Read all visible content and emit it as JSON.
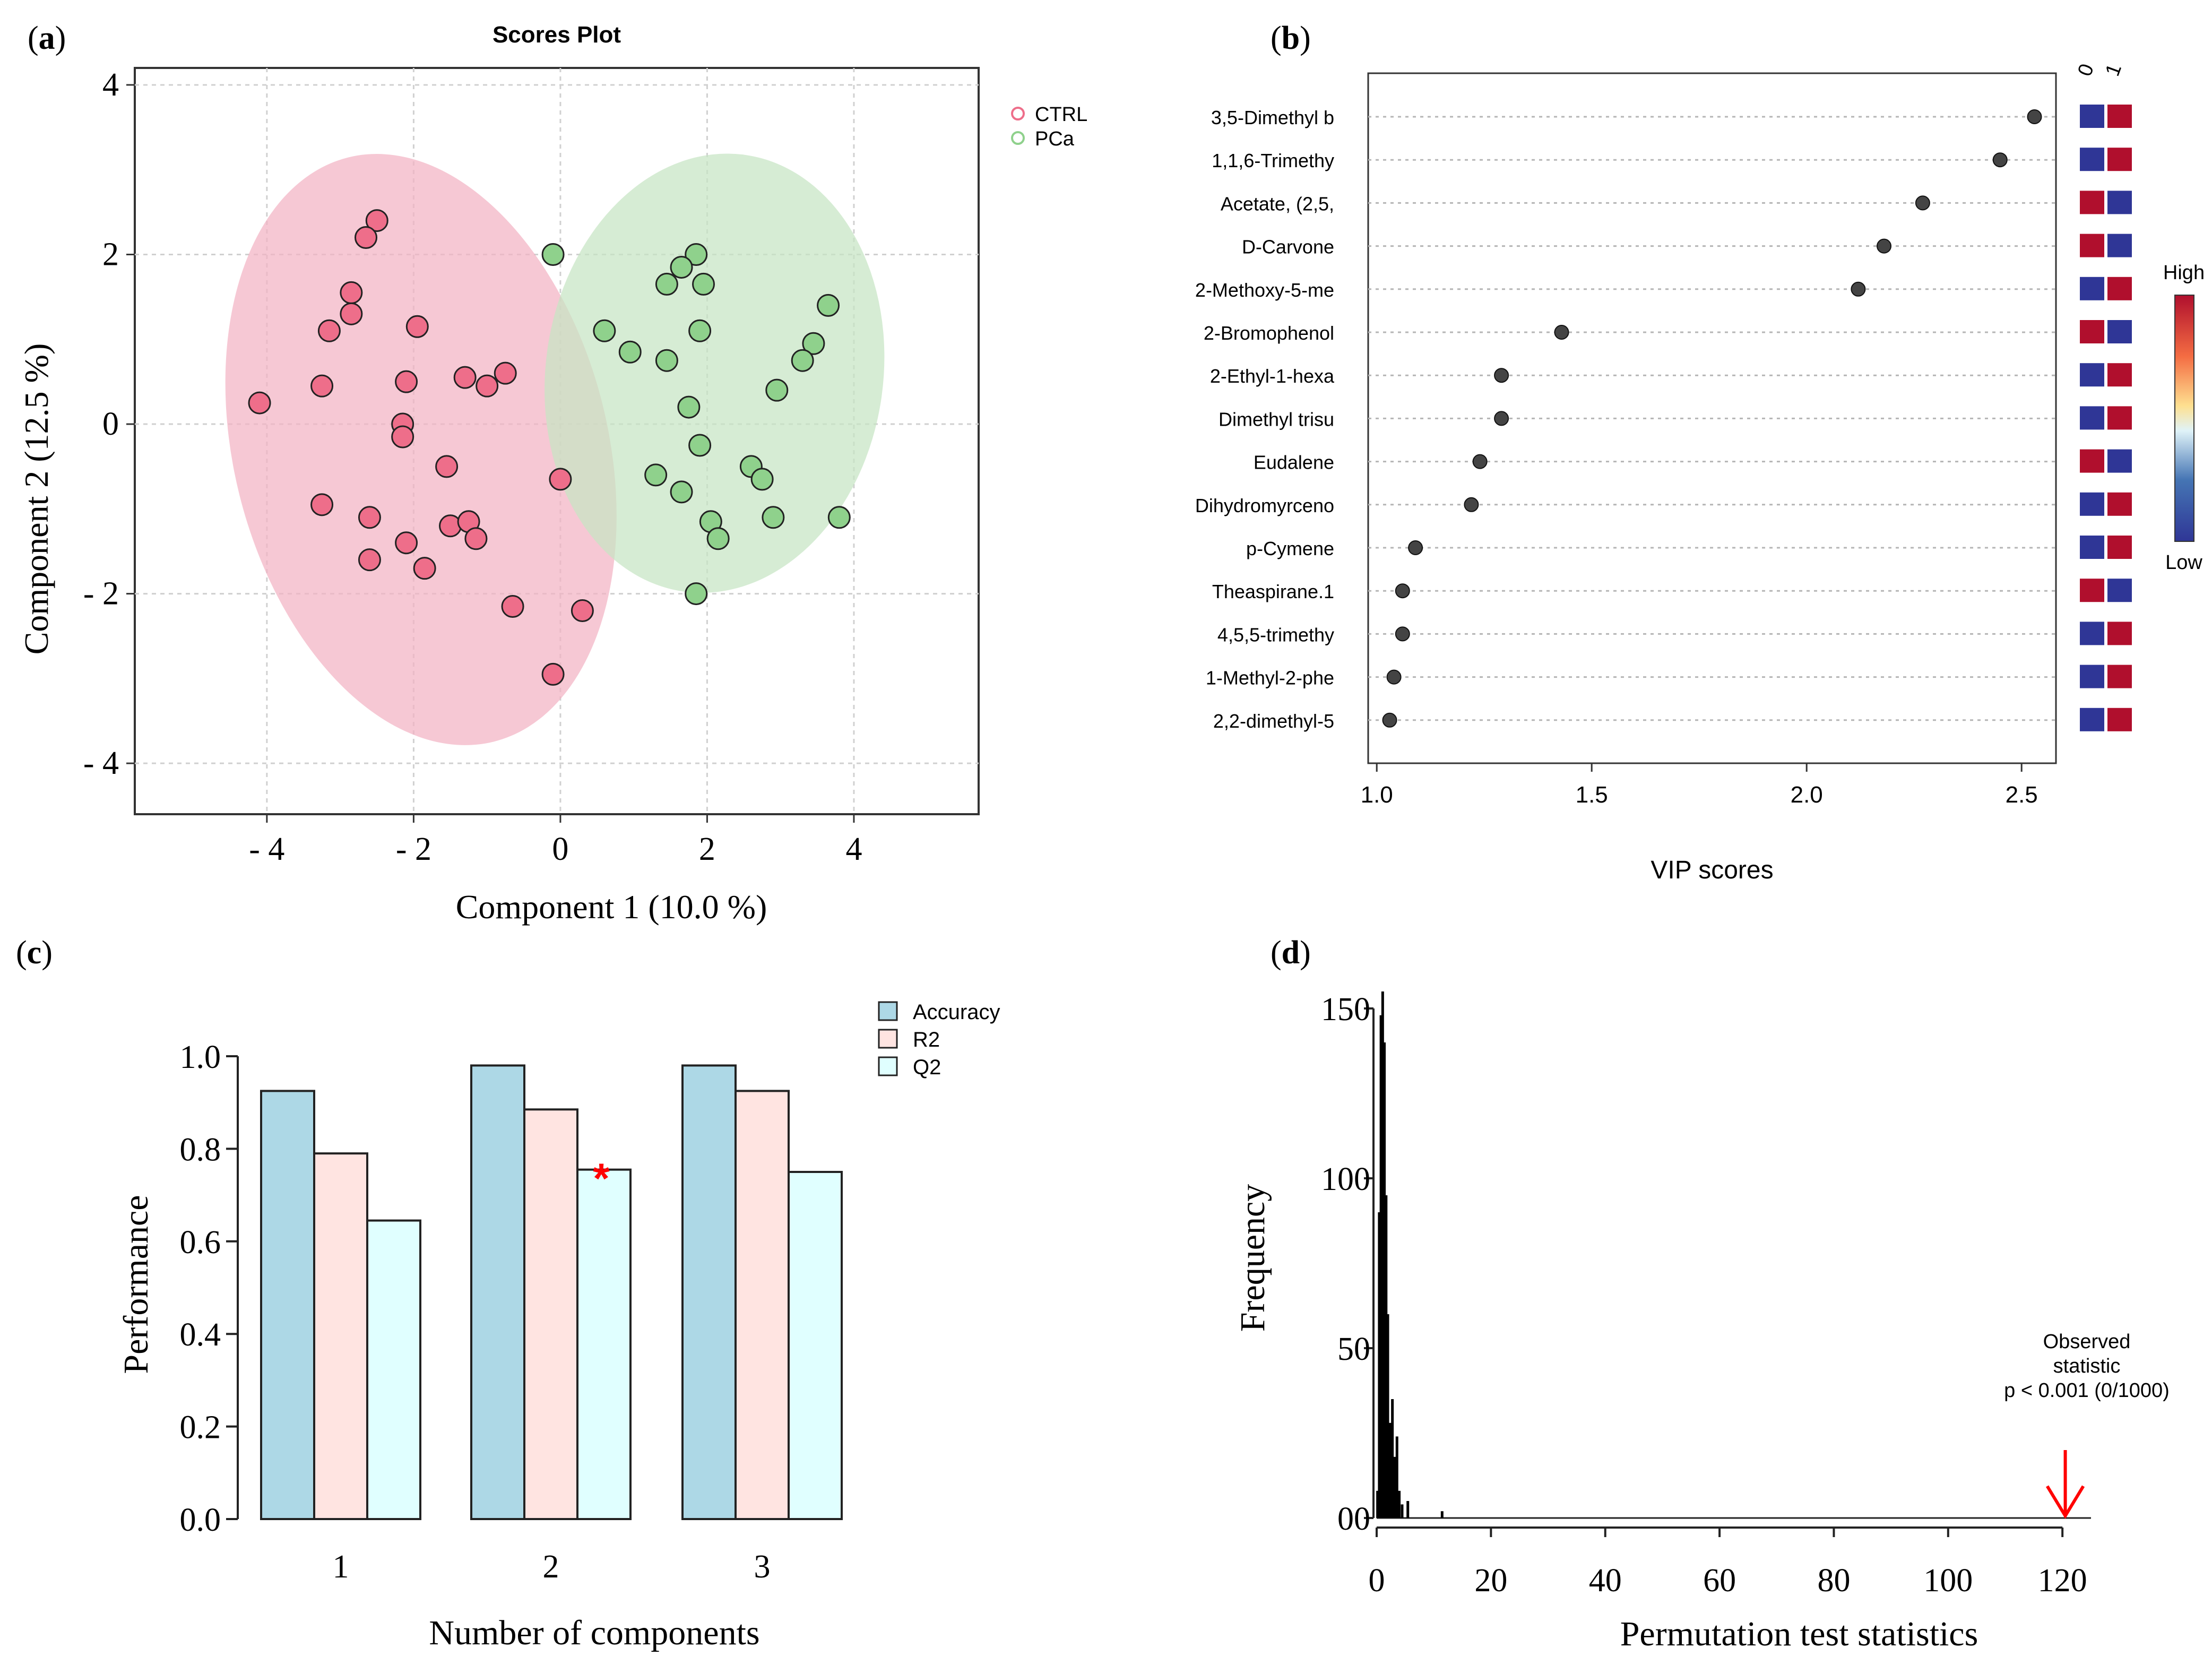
{
  "panels": {
    "a": {
      "label_open": "(",
      "letter": "a",
      "label_close": ")"
    },
    "b": {
      "label_open": "(",
      "letter": "b",
      "label_close": ")"
    },
    "c": {
      "label_open": "(",
      "letter": "c",
      "label_close": ")"
    },
    "d": {
      "label_open": "(",
      "letter": "d",
      "label_close": ")"
    }
  },
  "chart_data": [
    {
      "id": "a",
      "type": "scatter",
      "title": "Scores Plot",
      "xlabel": "Component 1 (10.0 %)",
      "ylabel": "Component 2 (12.5 %)",
      "xlim": [
        -5.8,
        5.7
      ],
      "ylim": [
        -4.6,
        4.2
      ],
      "xticks": [
        -4,
        -2,
        0,
        2,
        4
      ],
      "xtick_labels": [
        "- 4",
        "- 2",
        "0",
        "2",
        "4"
      ],
      "yticks": [
        -4,
        -2,
        0,
        2,
        4
      ],
      "ytick_labels": [
        "- 4",
        "- 2",
        "0",
        "2",
        "4"
      ],
      "grid": true,
      "legend_position": "top-right outside",
      "ellipses": [
        {
          "group": "CTRL",
          "center": [
            -1.9,
            -0.3
          ],
          "rx": 2.55,
          "ry": 3.55,
          "rotate_deg": 14,
          "color": "#f2b3c3"
        },
        {
          "group": "PCa",
          "center": [
            2.1,
            0.6
          ],
          "rx": 2.3,
          "ry": 2.6,
          "rotate_deg": -8,
          "color": "#c6e5c4"
        }
      ],
      "series": [
        {
          "name": "CTRL",
          "color": "#ee6e8a",
          "points": [
            [
              -4.1,
              0.25
            ],
            [
              -2.5,
              2.4
            ],
            [
              -2.65,
              2.2
            ],
            [
              -2.85,
              1.55
            ],
            [
              -2.85,
              1.3
            ],
            [
              -3.15,
              1.1
            ],
            [
              -3.25,
              0.45
            ],
            [
              -1.95,
              1.15
            ],
            [
              -2.1,
              0.5
            ],
            [
              -2.15,
              0
            ],
            [
              -2.15,
              -0.15
            ],
            [
              -1.3,
              0.55
            ],
            [
              -1.0,
              0.45
            ],
            [
              -0.75,
              0.6
            ],
            [
              -1.55,
              -0.5
            ],
            [
              -3.25,
              -0.95
            ],
            [
              -2.6,
              -1.1
            ],
            [
              -1.5,
              -1.2
            ],
            [
              -1.25,
              -1.15
            ],
            [
              -1.15,
              -1.35
            ],
            [
              -2.1,
              -1.4
            ],
            [
              -2.6,
              -1.6
            ],
            [
              -1.85,
              -1.7
            ],
            [
              -0.65,
              -2.15
            ],
            [
              0.3,
              -2.2
            ],
            [
              -0.1,
              -2.95
            ],
            [
              0.0,
              -0.65
            ]
          ]
        },
        {
          "name": "PCa",
          "color": "#8fd18c",
          "points": [
            [
              -0.1,
              2.0
            ],
            [
              1.85,
              2.0
            ],
            [
              1.65,
              1.85
            ],
            [
              1.45,
              1.65
            ],
            [
              1.95,
              1.65
            ],
            [
              3.65,
              1.4
            ],
            [
              0.6,
              1.1
            ],
            [
              1.9,
              1.1
            ],
            [
              3.45,
              0.95
            ],
            [
              0.95,
              0.85
            ],
            [
              1.45,
              0.75
            ],
            [
              3.3,
              0.75
            ],
            [
              2.95,
              0.4
            ],
            [
              1.75,
              0.2
            ],
            [
              1.9,
              -0.25
            ],
            [
              2.6,
              -0.5
            ],
            [
              2.75,
              -0.65
            ],
            [
              1.3,
              -0.6
            ],
            [
              1.65,
              -0.8
            ],
            [
              2.05,
              -1.15
            ],
            [
              2.15,
              -1.35
            ],
            [
              2.9,
              -1.1
            ],
            [
              3.8,
              -1.1
            ],
            [
              1.85,
              -2.0
            ]
          ]
        }
      ]
    },
    {
      "id": "b",
      "type": "dot",
      "xlabel": "VIP scores",
      "xlim": [
        0.98,
        2.58
      ],
      "xticks": [
        1.0,
        1.5,
        2.0,
        2.5
      ],
      "xtick_labels": [
        "1.0",
        "1.5",
        "2.0",
        "2.5"
      ],
      "heatmap_columns": [
        "0",
        "1"
      ],
      "colorbar_high": "High",
      "colorbar_low": "Low",
      "high_color": "#b00f2d",
      "low_color": "#2f3696",
      "features": [
        {
          "name": "3,5-Dimethyl b",
          "vip": 2.53,
          "levels": [
            "low",
            "high"
          ]
        },
        {
          "name": "1,1,6-Trimethy",
          "vip": 2.45,
          "levels": [
            "low",
            "high"
          ]
        },
        {
          "name": "Acetate, (2,5,",
          "vip": 2.27,
          "levels": [
            "high",
            "low"
          ]
        },
        {
          "name": "D-Carvone",
          "vip": 2.18,
          "levels": [
            "high",
            "low"
          ]
        },
        {
          "name": "2-Methoxy-5-me",
          "vip": 2.12,
          "levels": [
            "low",
            "high"
          ]
        },
        {
          "name": "2-Bromophenol",
          "vip": 1.43,
          "levels": [
            "high",
            "low"
          ]
        },
        {
          "name": "2-Ethyl-1-hexa",
          "vip": 1.29,
          "levels": [
            "low",
            "high"
          ]
        },
        {
          "name": "Dimethyl trisu",
          "vip": 1.29,
          "levels": [
            "low",
            "high"
          ]
        },
        {
          "name": "Eudalene",
          "vip": 1.24,
          "levels": [
            "high",
            "low"
          ]
        },
        {
          "name": "Dihydromyrceno",
          "vip": 1.22,
          "levels": [
            "low",
            "high"
          ]
        },
        {
          "name": "p-Cymene",
          "vip": 1.09,
          "levels": [
            "low",
            "high"
          ]
        },
        {
          "name": "Theaspirane.1",
          "vip": 1.06,
          "levels": [
            "high",
            "low"
          ]
        },
        {
          "name": "4,5,5-trimethy",
          "vip": 1.06,
          "levels": [
            "low",
            "high"
          ]
        },
        {
          "name": "1-Methyl-2-phe",
          "vip": 1.04,
          "levels": [
            "low",
            "high"
          ]
        },
        {
          "name": "2,2-dimethyl-5",
          "vip": 1.03,
          "levels": [
            "low",
            "high"
          ]
        }
      ]
    },
    {
      "id": "c",
      "type": "bar",
      "xlabel": "Number of components",
      "ylabel": "Performance",
      "ylim": [
        0,
        1.0
      ],
      "yticks": [
        0.0,
        0.2,
        0.4,
        0.6,
        0.8,
        1.0
      ],
      "ytick_labels": [
        "0.0",
        "0.2",
        "0.4",
        "0.6",
        "0.8",
        "1.0"
      ],
      "categories": [
        "1",
        "2",
        "3"
      ],
      "legend_position": "top-right",
      "series": [
        {
          "name": "Accuracy",
          "color": "#add8e6",
          "values": [
            0.925,
            0.98,
            0.98
          ]
        },
        {
          "name": "R2",
          "color": "#ffe4e1",
          "values": [
            0.79,
            0.885,
            0.925
          ]
        },
        {
          "name": "Q2",
          "color": "#e0ffff",
          "values": [
            0.645,
            0.755,
            0.75
          ]
        }
      ],
      "annotation": {
        "text": "*",
        "category": "2",
        "series": "Q2",
        "color": "#ff0000"
      }
    },
    {
      "id": "d",
      "type": "histogram",
      "xlabel": "Permutation test statistics",
      "ylabel": "Frequency",
      "xlim": [
        0,
        125
      ],
      "ylim": [
        0,
        150
      ],
      "xticks": [
        0,
        20,
        40,
        60,
        80,
        100,
        120
      ],
      "xtick_labels": [
        "0",
        "20",
        "40",
        "60",
        "80",
        "100",
        "120"
      ],
      "yticks": [
        0,
        50,
        100,
        150
      ],
      "ytick_labels": [
        "00",
        "50",
        "100",
        "150"
      ],
      "bins": [
        {
          "x": 0.2,
          "count": 8
        },
        {
          "x": 0.5,
          "count": 90
        },
        {
          "x": 0.8,
          "count": 148
        },
        {
          "x": 1.1,
          "count": 155
        },
        {
          "x": 1.4,
          "count": 140
        },
        {
          "x": 1.7,
          "count": 95
        },
        {
          "x": 2.0,
          "count": 60
        },
        {
          "x": 2.4,
          "count": 28
        },
        {
          "x": 2.8,
          "count": 35
        },
        {
          "x": 3.2,
          "count": 18
        },
        {
          "x": 3.6,
          "count": 24
        },
        {
          "x": 4.0,
          "count": 8
        },
        {
          "x": 4.5,
          "count": 4
        },
        {
          "x": 5.5,
          "count": 5
        },
        {
          "x": 11.5,
          "count": 2
        }
      ],
      "observed_value": 120.5,
      "observed_label_lines": [
        "Observed",
        "statistic",
        "p < 0.001 (0/1000)"
      ],
      "observed_color": "#ff0000"
    }
  ]
}
